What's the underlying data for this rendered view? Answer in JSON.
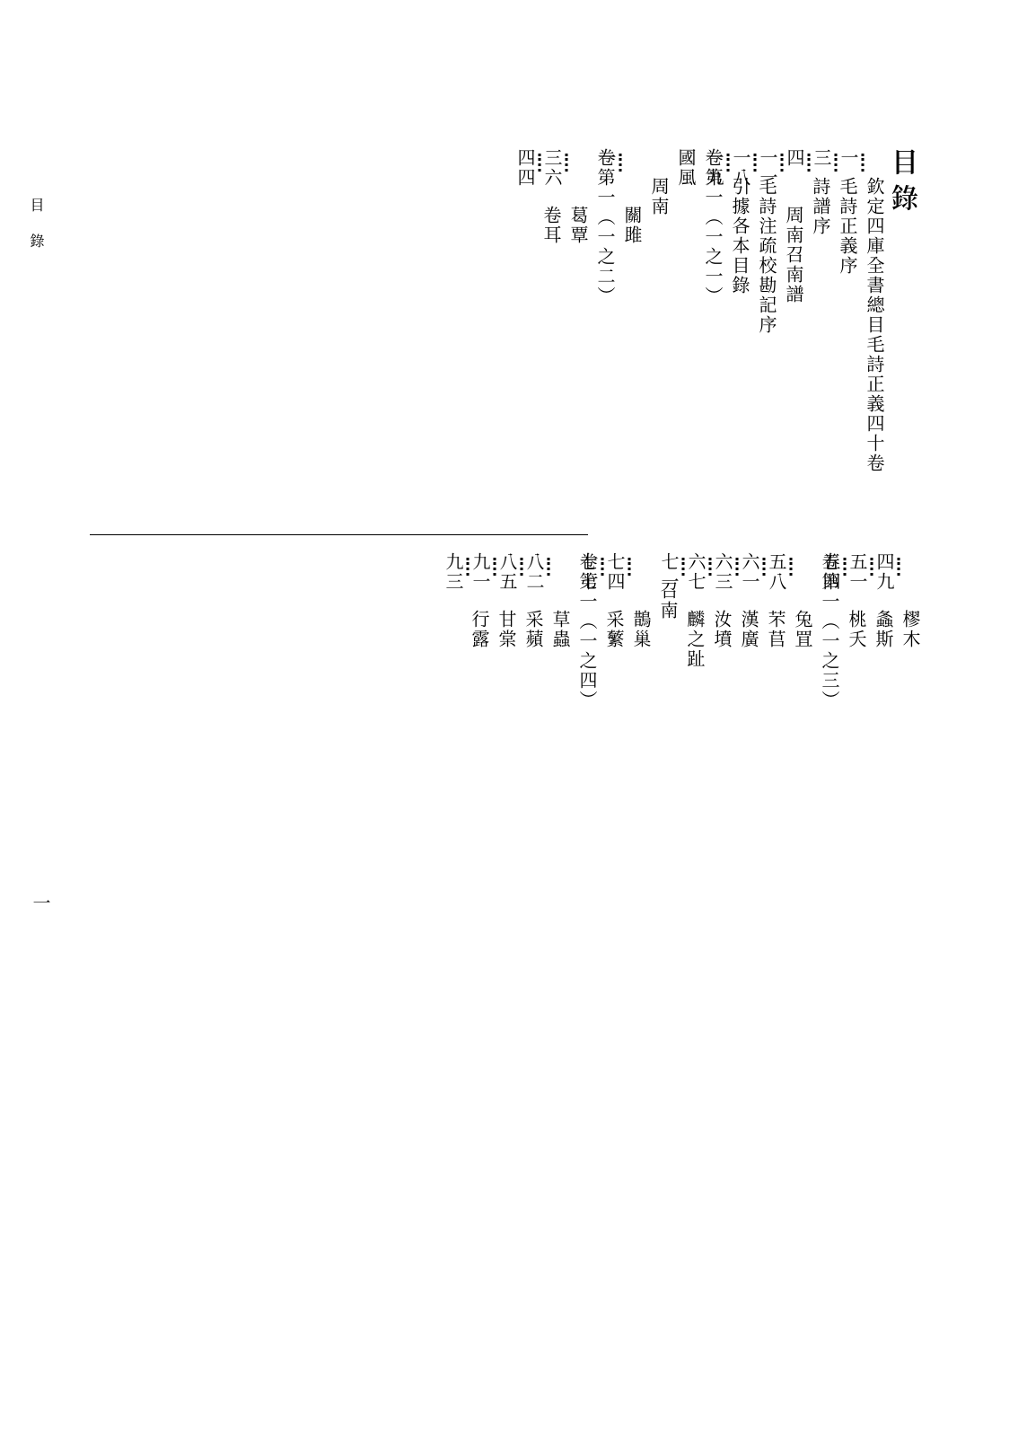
{
  "title": "目錄",
  "running_head": "目錄",
  "folio": "一",
  "top": {
    "cols": [
      {
        "type": "title"
      },
      {
        "type": "entry",
        "indent": 1,
        "text": "欽定四庫全書總目毛詩正義四十卷",
        "page": "一"
      },
      {
        "type": "entry",
        "indent": 1,
        "text": "毛詩正義序",
        "page": "三"
      },
      {
        "type": "entry",
        "indent": 1,
        "text": "詩譜序",
        "page": "四"
      },
      {
        "type": "entry",
        "indent": 2,
        "text": "周南召南譜",
        "page": "一一"
      },
      {
        "type": "entry",
        "indent": 1,
        "text": "毛詩注疏校勘記序",
        "page": "一八"
      },
      {
        "type": "entry",
        "indent": 1,
        "text": "引據各本目錄",
        "page": "一九"
      },
      {
        "type": "heading",
        "indent": 0,
        "text": "卷第一（一之一）"
      },
      {
        "type": "heading",
        "indent": 0,
        "text": "國風"
      },
      {
        "type": "heading",
        "indent": 1,
        "text": "周南"
      },
      {
        "type": "entry",
        "indent": 2,
        "text": "關雎",
        "page": "一"
      },
      {
        "type": "heading",
        "indent": 0,
        "text": "卷第一（一之二）"
      },
      {
        "type": "entry",
        "indent": 2,
        "text": "葛覃",
        "page": "三六"
      },
      {
        "type": "entry",
        "indent": 2,
        "text": "卷耳",
        "page": "四四"
      }
    ]
  },
  "bottom": {
    "cols": [
      {
        "type": "entry",
        "indent": 2,
        "text": "樛木",
        "page": "四九"
      },
      {
        "type": "entry",
        "indent": 2,
        "text": "螽斯",
        "page": "五一"
      },
      {
        "type": "entry",
        "indent": 2,
        "text": "桃夭",
        "page": "五四"
      },
      {
        "type": "heading",
        "indent": 0,
        "text": "卷第一（一之三）"
      },
      {
        "type": "entry",
        "indent": 2,
        "text": "兔罝",
        "page": "五八"
      },
      {
        "type": "entry",
        "indent": 2,
        "text": "芣苢",
        "page": "六一"
      },
      {
        "type": "entry",
        "indent": 2,
        "text": "漢廣",
        "page": "六三"
      },
      {
        "type": "entry",
        "indent": 2,
        "text": "汝墳",
        "page": "六七"
      },
      {
        "type": "entry",
        "indent": 2,
        "text": "麟之趾",
        "page": "七一"
      },
      {
        "type": "heading",
        "indent": 1,
        "text": "召南"
      },
      {
        "type": "entry",
        "indent": 2,
        "text": "鵲巢",
        "page": "七四"
      },
      {
        "type": "entry",
        "indent": 2,
        "text": "采蘩",
        "page": "七七"
      },
      {
        "type": "heading",
        "indent": 0,
        "text": "卷第一（一之四）"
      },
      {
        "type": "entry",
        "indent": 2,
        "text": "草蟲",
        "page": "八二"
      },
      {
        "type": "entry",
        "indent": 2,
        "text": "采蘋",
        "page": "八五"
      },
      {
        "type": "entry",
        "indent": 2,
        "text": "甘棠",
        "page": "九一"
      },
      {
        "type": "entry",
        "indent": 2,
        "text": "行露",
        "page": "九三"
      }
    ]
  }
}
